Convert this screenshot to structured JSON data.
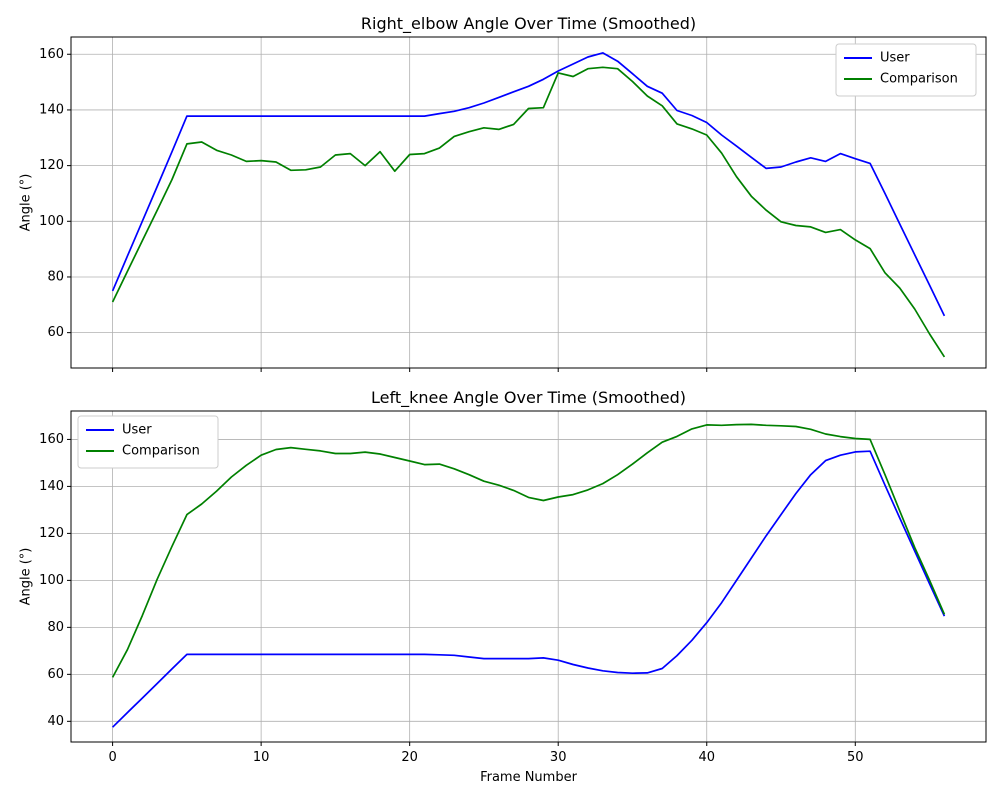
{
  "chart_data": [
    {
      "type": "line",
      "title": "Right_elbow Angle Over Time (Smoothed)",
      "xlabel": "",
      "ylabel": "Angle (°)",
      "xlim": [
        -2.8,
        58.8
      ],
      "ylim": [
        47.3,
        166.2
      ],
      "xticks": [
        0,
        10,
        20,
        30,
        40,
        50
      ],
      "yticks": [
        60,
        80,
        100,
        120,
        140,
        160
      ],
      "grid": true,
      "legend": "top-right",
      "x": [
        0,
        1,
        2,
        3,
        4,
        5,
        6,
        7,
        8,
        9,
        10,
        11,
        12,
        13,
        14,
        15,
        16,
        17,
        18,
        19,
        20,
        21,
        22,
        23,
        24,
        25,
        26,
        27,
        28,
        29,
        30,
        31,
        32,
        33,
        34,
        35,
        36,
        37,
        38,
        39,
        40,
        41,
        42,
        43,
        44,
        45,
        46,
        47,
        48,
        49,
        50,
        51,
        52,
        53,
        54,
        55,
        56
      ],
      "series": [
        {
          "name": "User",
          "color": "#0000ff",
          "values": [
            75,
            87.5,
            100,
            112.5,
            125,
            137.8,
            137.8,
            137.8,
            137.8,
            137.8,
            137.8,
            137.8,
            137.8,
            137.8,
            137.8,
            137.8,
            137.8,
            137.8,
            137.8,
            137.8,
            137.8,
            137.8,
            138.7,
            139.5,
            140.8,
            142.5,
            144.5,
            146.5,
            148.5,
            151,
            154,
            156.5,
            159,
            160.5,
            157.5,
            153,
            148.5,
            146,
            139.8,
            138,
            135.5,
            131,
            127,
            123,
            119,
            119.5,
            121.3,
            122.8,
            121.5,
            124.3,
            122.5,
            120.8,
            110,
            99,
            88,
            77,
            66
          ]
        },
        {
          "name": "Comparison",
          "color": "#008000",
          "values": [
            71,
            82,
            93,
            104,
            115,
            127.8,
            128.5,
            125.5,
            123.8,
            121.5,
            121.8,
            121.3,
            118.3,
            118.5,
            119.5,
            123.8,
            124.3,
            120,
            125,
            118,
            124,
            124.3,
            126.3,
            130.5,
            132.2,
            133.6,
            133,
            134.8,
            140.5,
            140.8,
            153.3,
            152,
            154.8,
            155.3,
            154.8,
            150.2,
            145,
            141.5,
            135,
            133.2,
            131,
            124.5,
            116,
            109,
            104,
            99.8,
            98.5,
            98,
            96,
            97,
            93.3,
            90.2,
            81.5,
            76,
            68.5,
            59.5,
            51.3
          ]
        }
      ]
    },
    {
      "type": "line",
      "title": "Left_knee Angle Over Time (Smoothed)",
      "xlabel": "Frame Number",
      "ylabel": "Angle (°)",
      "xlim": [
        -2.8,
        58.8
      ],
      "ylim": [
        31.2,
        172.1
      ],
      "xticks": [
        0,
        10,
        20,
        30,
        40,
        50
      ],
      "yticks": [
        40,
        60,
        80,
        100,
        120,
        140,
        160
      ],
      "grid": true,
      "legend": "top-left",
      "x": [
        0,
        1,
        2,
        3,
        4,
        5,
        6,
        7,
        8,
        9,
        10,
        11,
        12,
        13,
        14,
        15,
        16,
        17,
        18,
        19,
        20,
        21,
        22,
        23,
        24,
        25,
        26,
        27,
        28,
        29,
        30,
        31,
        32,
        33,
        34,
        35,
        36,
        37,
        38,
        39,
        40,
        41,
        42,
        43,
        44,
        45,
        46,
        47,
        48,
        49,
        50,
        51,
        52,
        53,
        54,
        55,
        56
      ],
      "series": [
        {
          "name": "User",
          "color": "#0000ff",
          "values": [
            37.5,
            43.7,
            49.9,
            56.1,
            62.3,
            68.5,
            68.5,
            68.5,
            68.5,
            68.5,
            68.5,
            68.5,
            68.5,
            68.5,
            68.5,
            68.5,
            68.5,
            68.5,
            68.5,
            68.5,
            68.5,
            68.5,
            68.3,
            68.1,
            67.4,
            66.7,
            66.7,
            66.7,
            66.7,
            67,
            66,
            64.2,
            62.7,
            61.5,
            60.8,
            60.5,
            60.6,
            62.5,
            68,
            74.5,
            82,
            90.5,
            100,
            109.5,
            119,
            128,
            137,
            145,
            151,
            153.3,
            154.7,
            155,
            140.5,
            126.5,
            112.5,
            98.5,
            84.8
          ]
        },
        {
          "name": "Comparison",
          "color": "#008000",
          "values": [
            58.7,
            70.5,
            85,
            100.5,
            114.5,
            128,
            132.5,
            138,
            144,
            149,
            153.3,
            155.7,
            156.5,
            155.8,
            155.1,
            154,
            154,
            154.6,
            153.8,
            152.3,
            150.8,
            149.3,
            149.5,
            147.5,
            145,
            142.2,
            140.5,
            138.3,
            135.3,
            134,
            135.5,
            136.5,
            138.5,
            141.2,
            145,
            149.5,
            154.3,
            158.8,
            161.3,
            164.5,
            166.2,
            166,
            166.3,
            166.4,
            166,
            165.8,
            165.5,
            164.3,
            162.3,
            161.2,
            160.4,
            160,
            145,
            129.5,
            114,
            100,
            85.5
          ]
        }
      ]
    }
  ]
}
